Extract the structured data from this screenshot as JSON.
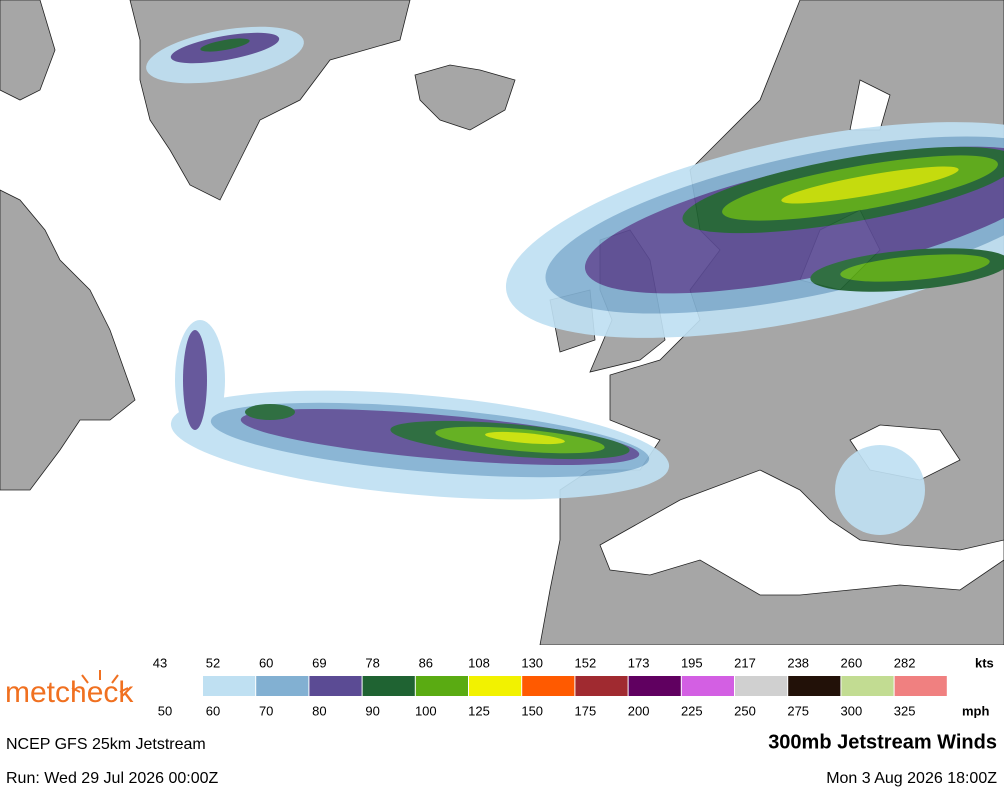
{
  "logo": "metcheck",
  "legend": {
    "kts_unit": "kts",
    "mph_unit": "mph",
    "kts": [
      43,
      52,
      60,
      69,
      78,
      86,
      108,
      130,
      152,
      173,
      195,
      217,
      238,
      260,
      282
    ],
    "mph": [
      50,
      60,
      70,
      80,
      90,
      100,
      125,
      150,
      175,
      200,
      225,
      250,
      275,
      300,
      325
    ],
    "colors": [
      "#bfe0f2",
      "#82b0d2",
      "#5b4b94",
      "#1f6332",
      "#5aab12",
      "#f2f200",
      "#ff5a00",
      "#a02a30",
      "#600060",
      "#d35fe3",
      "#d0d0d0",
      "#221108",
      "#c2dc92",
      "#f08080"
    ]
  },
  "footer": {
    "model": "NCEP GFS 25km Jetstream",
    "title": "300mb Jetstream Winds",
    "run": "Run: Wed 29 Jul 2026 00:00Z",
    "valid": "Mon 3 Aug 2026 18:00Z"
  }
}
